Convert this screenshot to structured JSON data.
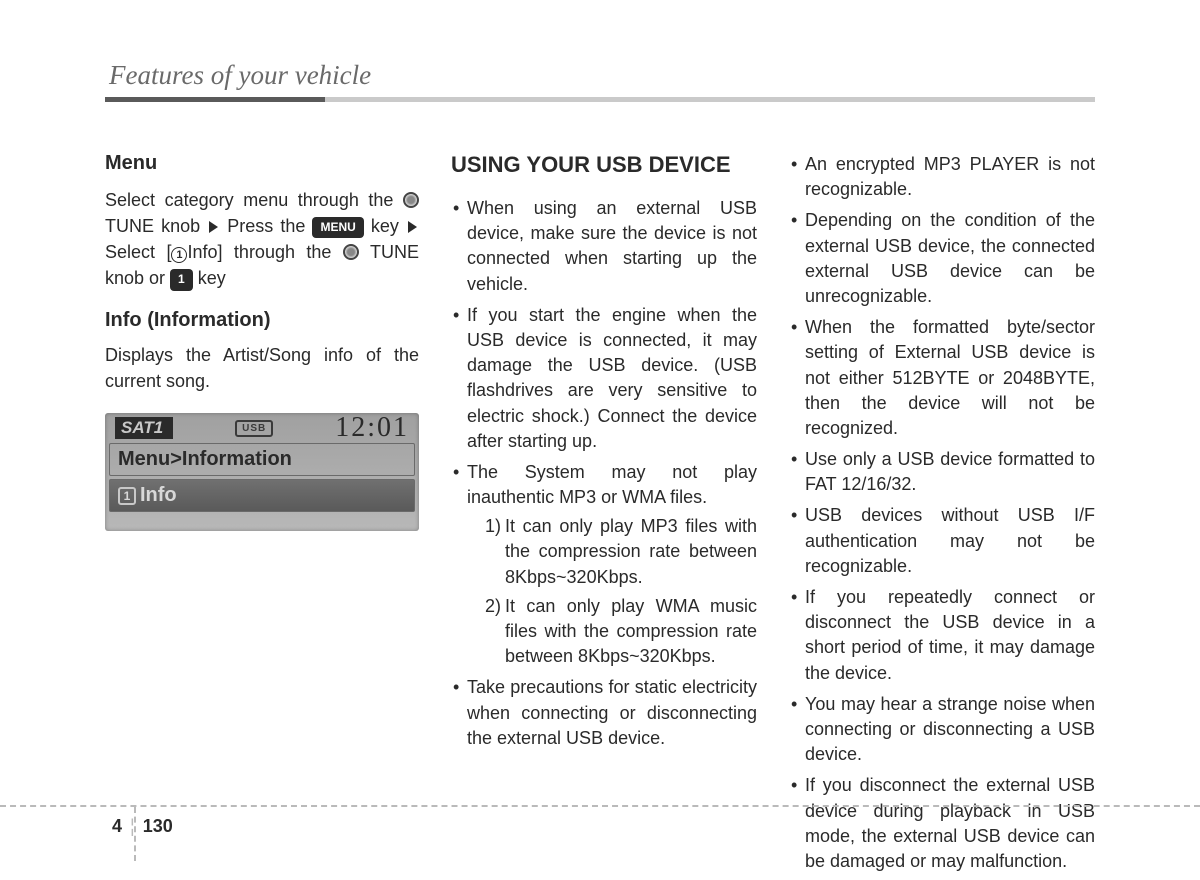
{
  "header": {
    "title": "Features of your vehicle"
  },
  "col1": {
    "menu_heading": "Menu",
    "menu_text_1": "Select category menu through the ",
    "tune_label": " TUNE knob",
    "press_the": "Press the ",
    "menu_key": "MENU",
    "key_label_1": " key ",
    "select_label": "Select [",
    "info_label": "Info] through the ",
    "tune_or": " TUNE knob or ",
    "one_key": "1",
    "key_label_2": " key",
    "info_heading": "Info (Information)",
    "info_text": "Displays the Artist/Song info of the current song."
  },
  "lcd": {
    "sat": "SAT1",
    "usb": "USB",
    "time": "12:01",
    "row1": "Menu>Information",
    "info_icon": "1",
    "row2": "Info"
  },
  "col2": {
    "heading": "USING YOUR USB DEVICE",
    "b1": "When using an external USB device, make sure the device is not connected when starting up the vehicle.",
    "b2": "If you start the engine when the USB device is connected, it may damage the USB device. (USB flashdrives are very sensitive to electric shock.) Connect the device after starting up.",
    "b3": "The System may not play inauthentic MP3 or WMA files.",
    "b3_1": "It can only play MP3 files with the compression rate between 8Kbps~320Kbps.",
    "b3_2": "It can only play WMA music files with the compression rate between 8Kbps~320Kbps.",
    "b4": "Take precautions for static electricity when connecting or disconnecting the external USB device."
  },
  "col3": {
    "b1": "An encrypted MP3 PLAYER is not recognizable.",
    "b2": "Depending on the condition of the external USB device, the connected external USB device can be unrecognizable.",
    "b3": "When the formatted byte/sector setting of External USB device is not either 512BYTE or 2048BYTE, then the device will not be recognized.",
    "b4": "Use only a USB device formatted to FAT 12/16/32.",
    "b5": "USB devices without USB I/F authentication may not be recognizable.",
    "b6": "If you repeatedly connect or disconnect the USB device in a short period of time, it may damage the device.",
    "b7": "You may hear a strange noise when connecting or disconnecting a USB device.",
    "b8": "If you disconnect the external USB device during playback in USB mode, the external USB device can be damaged or may malfunction."
  },
  "footer": {
    "chapter": "4",
    "page": "130"
  }
}
